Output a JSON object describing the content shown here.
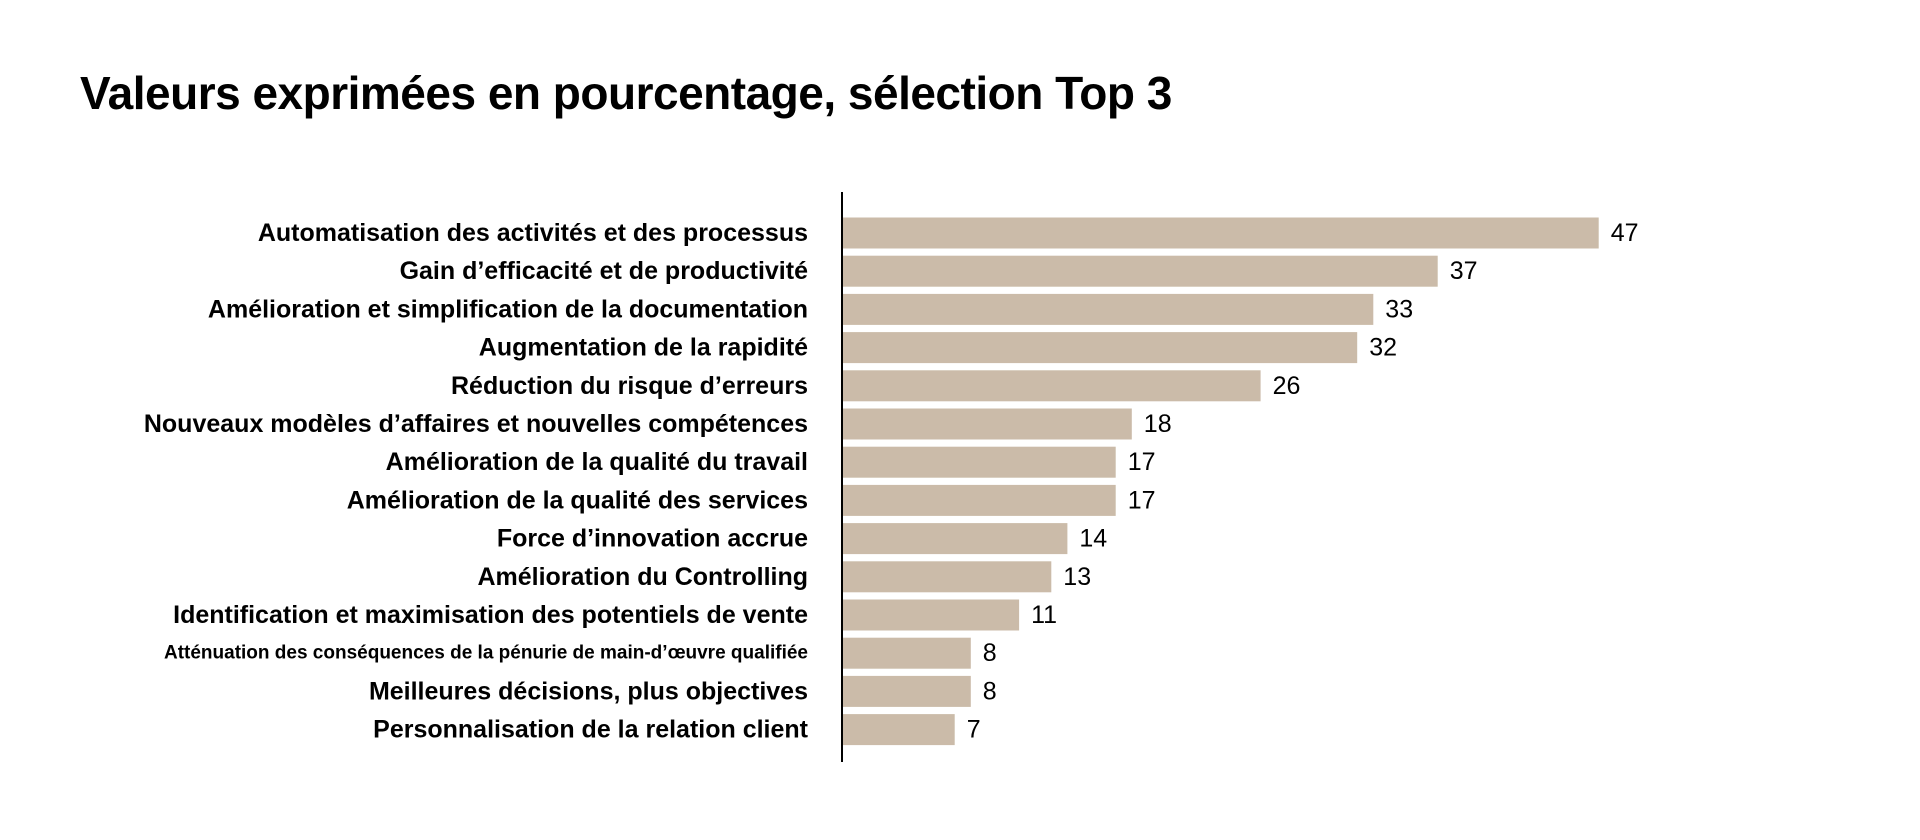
{
  "chart_data": {
    "type": "bar",
    "orientation": "horizontal",
    "title": "Valeurs exprimées en pourcentage, sélection Top 3",
    "categories": [
      "Automatisation des activités et des processus",
      "Gain d’efficacité et de productivité",
      "Amélioration et simplification de la documentation",
      "Augmentation de la rapidité",
      "Réduction du risque d’erreurs",
      "Nouveaux modèles d’affaires et nouvelles compétences",
      "Amélioration de la qualité du travail",
      "Amélioration de la qualité des services",
      "Force d’innovation accrue",
      "Amélioration du Controlling",
      "Identification et maximisation des potentiels de vente",
      "Atténuation des conséquences de la pénurie de main-d’œuvre qualifiée",
      "Meilleures décisions, plus objectives",
      "Personnalisation de la relation client"
    ],
    "values": [
      47,
      37,
      33,
      32,
      26,
      18,
      17,
      17,
      14,
      13,
      11,
      8,
      8,
      7
    ],
    "xlim": [
      0,
      50
    ],
    "grid": false,
    "legend": "none",
    "bar_color": "#cbbba9",
    "axis_color": "#000000"
  }
}
